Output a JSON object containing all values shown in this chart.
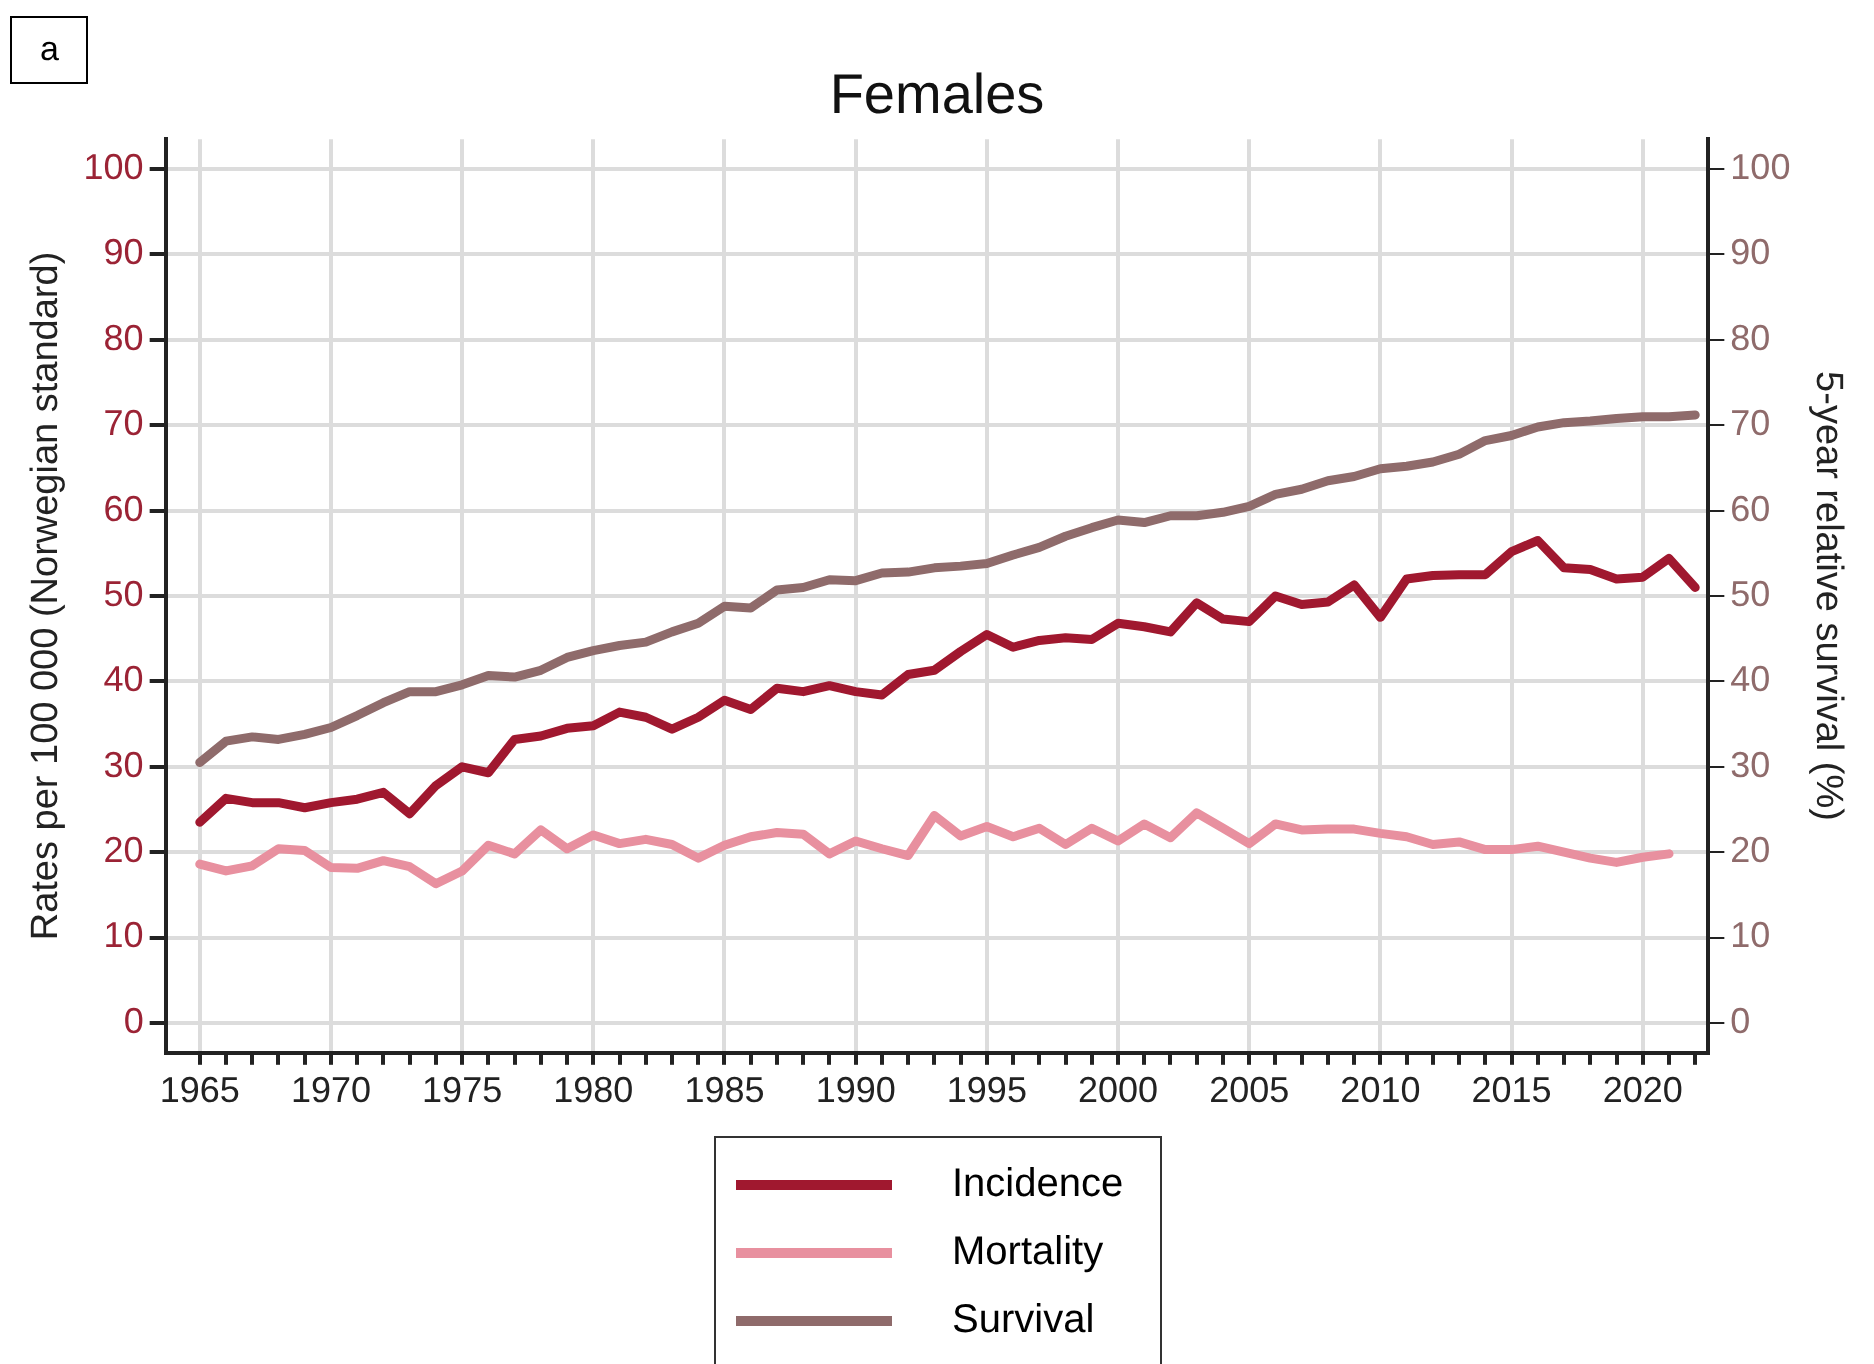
{
  "chart_data": {
    "type": "line",
    "title": "Females",
    "ylabel": "Rates per 100 000 (Norwegian standard)",
    "y2label": "5-year relative survival (%)",
    "annotations": [
      "a"
    ],
    "x": [
      1965,
      1966,
      1967,
      1968,
      1969,
      1970,
      1971,
      1972,
      1973,
      1974,
      1975,
      1976,
      1977,
      1978,
      1979,
      1980,
      1981,
      1982,
      1983,
      1984,
      1985,
      1986,
      1987,
      1988,
      1989,
      1990,
      1991,
      1992,
      1993,
      1994,
      1995,
      1996,
      1997,
      1998,
      1999,
      2000,
      2001,
      2002,
      2003,
      2004,
      2005,
      2006,
      2007,
      2008,
      2009,
      2010,
      2011,
      2012,
      2013,
      2014,
      2015,
      2016,
      2017,
      2018,
      2019,
      2020,
      2021,
      2022
    ],
    "series": [
      {
        "name": "Incidence",
        "color": "#a0182f",
        "values": [
          23.5,
          26.3,
          25.8,
          25.8,
          25.2,
          25.8,
          26.2,
          27,
          24.5,
          27.8,
          30,
          29.3,
          33.2,
          33.6,
          34.5,
          34.8,
          36.4,
          35.8,
          34.4,
          35.8,
          37.8,
          36.7,
          39.2,
          38.8,
          39.5,
          38.8,
          38.4,
          40.8,
          41.3,
          43.5,
          45.5,
          44,
          44.8,
          45.1,
          44.9,
          46.8,
          46.4,
          45.8,
          49.2,
          47.3,
          47,
          50,
          49,
          49.3,
          51.3,
          47.5,
          52,
          52.4,
          52.5,
          52.5,
          55.2,
          56.5,
          53.3,
          53.1,
          52,
          52.2,
          54.4,
          51
        ]
      },
      {
        "name": "Mortality",
        "color": "#e8909f",
        "values": [
          18.6,
          17.8,
          18.4,
          20.4,
          20.2,
          18.2,
          18.1,
          19,
          18.3,
          16.3,
          17.8,
          20.8,
          19.8,
          22.6,
          20.4,
          22,
          21,
          21.5,
          20.9,
          19.3,
          20.8,
          21.8,
          22.3,
          22.1,
          19.8,
          21.3,
          20.4,
          19.6,
          24.3,
          21.9,
          23,
          21.8,
          22.8,
          20.9,
          22.8,
          21.3,
          23.3,
          21.7,
          24.6,
          22.8,
          21,
          23.3,
          22.6,
          22.7,
          22.7,
          22.2,
          21.8,
          20.9,
          21.2,
          20.3,
          20.3,
          20.7,
          20,
          19.3,
          18.8,
          19.4,
          19.8,
          null
        ]
      },
      {
        "name": "Survival",
        "color": "#8f6b6b",
        "axis": "y2",
        "values": [
          30.5,
          33,
          33.5,
          33.2,
          33.8,
          34.6,
          36,
          37.5,
          38.8,
          38.8,
          39.6,
          40.7,
          40.5,
          41.3,
          42.8,
          43.6,
          44.2,
          44.6,
          45.8,
          46.8,
          48.8,
          48.6,
          50.7,
          51,
          51.9,
          51.8,
          52.7,
          52.8,
          53.3,
          53.5,
          53.8,
          54.8,
          55.7,
          57,
          58,
          58.9,
          58.6,
          59.4,
          59.4,
          59.8,
          60.5,
          61.9,
          62.5,
          63.5,
          64,
          64.9,
          65.2,
          65.7,
          66.6,
          68.2,
          68.8,
          69.8,
          70.3,
          70.5,
          70.8,
          71,
          71,
          71.2
        ]
      }
    ],
    "xlim": [
      1963.7,
      2022.5
    ],
    "xticks": [
      1965,
      {
        "value": 1966,
        "label": null
      },
      {
        "value": 1967,
        "label": null
      },
      {
        "value": 1968,
        "label": null
      },
      {
        "value": 1969,
        "label": null
      },
      1970,
      {
        "value": 1971,
        "label": null
      },
      {
        "value": 1972,
        "label": null
      },
      {
        "value": 1973,
        "label": null
      },
      {
        "value": 1974,
        "label": null
      },
      1975,
      {
        "value": 1976,
        "label": null
      },
      {
        "value": 1977,
        "label": null
      },
      {
        "value": 1978,
        "label": null
      },
      {
        "value": 1979,
        "label": null
      },
      1980,
      {
        "value": 1981,
        "label": null
      },
      {
        "value": 1982,
        "label": null
      },
      {
        "value": 1983,
        "label": null
      },
      {
        "value": 1984,
        "label": null
      },
      1985,
      {
        "value": 1986,
        "label": null
      },
      {
        "value": 1987,
        "label": null
      },
      {
        "value": 1988,
        "label": null
      },
      {
        "value": 1989,
        "label": null
      },
      1990,
      {
        "value": 1991,
        "label": null
      },
      {
        "value": 1992,
        "label": null
      },
      {
        "value": 1993,
        "label": null
      },
      {
        "value": 1994,
        "label": null
      },
      1995,
      {
        "value": 1996,
        "label": null
      },
      {
        "value": 1997,
        "label": null
      },
      {
        "value": 1998,
        "label": null
      },
      {
        "value": 1999,
        "label": null
      },
      2000,
      {
        "value": 2001,
        "label": null
      },
      {
        "value": 2002,
        "label": null
      },
      {
        "value": 2003,
        "label": null
      },
      {
        "value": 2004,
        "label": null
      },
      2005,
      {
        "value": 2006,
        "label": null
      },
      {
        "value": 2007,
        "label": null
      },
      {
        "value": 2008,
        "label": null
      },
      {
        "value": 2009,
        "label": null
      },
      2010,
      {
        "value": 2011,
        "label": null
      },
      {
        "value": 2012,
        "label": null
      },
      {
        "value": 2013,
        "label": null
      },
      {
        "value": 2014,
        "label": null
      },
      2015,
      {
        "value": 2016,
        "label": null
      },
      {
        "value": 2017,
        "label": null
      },
      {
        "value": 2018,
        "label": null
      },
      {
        "value": 2019,
        "label": null
      },
      2020,
      {
        "value": 2021,
        "label": null
      },
      {
        "value": 2022,
        "label": null
      }
    ],
    "ylim": [
      -3.5,
      103.5
    ],
    "yticks": [
      0,
      10,
      20,
      30,
      40,
      50,
      60,
      70,
      80,
      90,
      100
    ],
    "y2lim": [
      -3.5,
      103.5
    ],
    "y2ticks": [
      0,
      10,
      20,
      30,
      40,
      50,
      60,
      70,
      80,
      90,
      100
    ],
    "grid": true,
    "legend": "bottom",
    "marker": "none",
    "line_style": "solid"
  }
}
